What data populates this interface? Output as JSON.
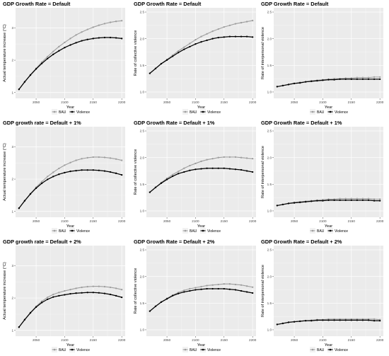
{
  "colors": {
    "panel_bg": "#ebebeb",
    "grid": "#ffffff",
    "bau": "#9e9e9e",
    "violence": "#000000"
  },
  "legend": {
    "bau_label": "BAU",
    "violence_label": "Violence"
  },
  "chart_data": [
    {
      "type": "line",
      "title": "GDP Growth Rate = Default",
      "xlabel": "Year",
      "ylabel": "Actual temperature increase (°C)",
      "xlim": [
        2014,
        2206
      ],
      "ylim": [
        0.82,
        3.62
      ],
      "xticks": [
        2050,
        2100,
        2150,
        2200
      ],
      "yticks": [
        1,
        2,
        3
      ],
      "x": [
        2020,
        2030,
        2040,
        2050,
        2060,
        2070,
        2080,
        2090,
        2100,
        2110,
        2120,
        2130,
        2140,
        2150,
        2160,
        2170,
        2180,
        2190,
        2200
      ],
      "series": [
        {
          "name": "BAU",
          "values": [
            1.1,
            1.33,
            1.55,
            1.75,
            1.94,
            2.11,
            2.27,
            2.42,
            2.55,
            2.67,
            2.78,
            2.87,
            2.95,
            3.02,
            3.08,
            3.13,
            3.17,
            3.2,
            3.22
          ]
        },
        {
          "name": "Violence",
          "values": [
            1.1,
            1.33,
            1.54,
            1.73,
            1.9,
            2.05,
            2.18,
            2.29,
            2.39,
            2.47,
            2.54,
            2.6,
            2.64,
            2.67,
            2.69,
            2.7,
            2.7,
            2.69,
            2.67
          ]
        }
      ]
    },
    {
      "type": "line",
      "title": "GDP Growth Rate = Default",
      "xlabel": "Year",
      "ylabel": "Rate of collective violence",
      "xlim": [
        2014,
        2206
      ],
      "ylim": [
        0.88,
        2.58
      ],
      "xticks": [
        2050,
        2100,
        2150,
        2200
      ],
      "yticks": [
        1.0,
        1.5,
        2.0,
        2.5
      ],
      "x": [
        2020,
        2030,
        2040,
        2050,
        2060,
        2070,
        2080,
        2090,
        2100,
        2110,
        2120,
        2130,
        2140,
        2150,
        2160,
        2170,
        2180,
        2190,
        2200
      ],
      "series": [
        {
          "name": "BAU",
          "values": [
            1.35,
            1.44,
            1.53,
            1.61,
            1.69,
            1.77,
            1.84,
            1.91,
            1.98,
            2.04,
            2.09,
            2.14,
            2.18,
            2.22,
            2.25,
            2.28,
            2.3,
            2.32,
            2.34
          ]
        },
        {
          "name": "Violence",
          "values": [
            1.35,
            1.44,
            1.53,
            1.6,
            1.67,
            1.74,
            1.8,
            1.85,
            1.9,
            1.94,
            1.97,
            2.0,
            2.02,
            2.03,
            2.04,
            2.04,
            2.04,
            2.04,
            2.03
          ]
        }
      ]
    },
    {
      "type": "line",
      "title": "GDP Growth Rate = Default",
      "xlabel": "Year",
      "ylabel": "Rate of interpersonal violence",
      "xlim": [
        2014,
        2206
      ],
      "ylim": [
        0.88,
        2.58
      ],
      "xticks": [
        2050,
        2100,
        2150,
        2200
      ],
      "yticks": [
        1.0,
        1.5,
        2.0,
        2.5
      ],
      "x": [
        2020,
        2030,
        2040,
        2050,
        2060,
        2070,
        2080,
        2090,
        2100,
        2110,
        2120,
        2130,
        2140,
        2150,
        2160,
        2170,
        2180,
        2190,
        2200
      ],
      "series": [
        {
          "name": "BAU",
          "values": [
            1.1,
            1.12,
            1.14,
            1.16,
            1.18,
            1.19,
            1.21,
            1.22,
            1.23,
            1.24,
            1.25,
            1.25,
            1.26,
            1.26,
            1.27,
            1.27,
            1.27,
            1.28,
            1.28
          ]
        },
        {
          "name": "Violence",
          "values": [
            1.1,
            1.12,
            1.14,
            1.16,
            1.17,
            1.19,
            1.2,
            1.21,
            1.22,
            1.23,
            1.23,
            1.24,
            1.24,
            1.24,
            1.24,
            1.24,
            1.24,
            1.24,
            1.24
          ]
        }
      ]
    },
    {
      "type": "line",
      "title": "GDP growth rate = Default + 1%",
      "xlabel": "Year",
      "ylabel": "Actual temperature increase (°C)",
      "xlim": [
        2014,
        2206
      ],
      "ylim": [
        0.82,
        3.62
      ],
      "xticks": [
        2050,
        2100,
        2150,
        2200
      ],
      "yticks": [
        1,
        2,
        3
      ],
      "x": [
        2020,
        2030,
        2040,
        2050,
        2060,
        2070,
        2080,
        2090,
        2100,
        2110,
        2120,
        2130,
        2140,
        2150,
        2160,
        2170,
        2180,
        2190,
        2200
      ],
      "series": [
        {
          "name": "BAU",
          "values": [
            1.1,
            1.33,
            1.55,
            1.75,
            1.92,
            2.08,
            2.21,
            2.33,
            2.43,
            2.51,
            2.58,
            2.63,
            2.66,
            2.68,
            2.68,
            2.67,
            2.65,
            2.62,
            2.58
          ]
        },
        {
          "name": "Violence",
          "values": [
            1.1,
            1.33,
            1.54,
            1.72,
            1.87,
            1.99,
            2.08,
            2.15,
            2.2,
            2.24,
            2.26,
            2.28,
            2.28,
            2.28,
            2.27,
            2.25,
            2.22,
            2.18,
            2.13
          ]
        }
      ]
    },
    {
      "type": "line",
      "title": "GDP Growth Rate = Default + 1%",
      "xlabel": "Year",
      "ylabel": "Rate of collective violence",
      "xlim": [
        2014,
        2206
      ],
      "ylim": [
        0.88,
        2.58
      ],
      "xticks": [
        2050,
        2100,
        2150,
        2200
      ],
      "yticks": [
        1.0,
        1.5,
        2.0,
        2.5
      ],
      "x": [
        2020,
        2030,
        2040,
        2050,
        2060,
        2070,
        2080,
        2090,
        2100,
        2110,
        2120,
        2130,
        2140,
        2150,
        2160,
        2170,
        2180,
        2190,
        2200
      ],
      "series": [
        {
          "name": "BAU",
          "values": [
            1.35,
            1.44,
            1.53,
            1.61,
            1.68,
            1.74,
            1.8,
            1.85,
            1.89,
            1.93,
            1.96,
            1.98,
            2.0,
            2.01,
            2.01,
            2.01,
            2.0,
            1.99,
            1.98
          ]
        },
        {
          "name": "Violence",
          "values": [
            1.35,
            1.44,
            1.52,
            1.59,
            1.65,
            1.7,
            1.73,
            1.76,
            1.78,
            1.79,
            1.8,
            1.8,
            1.8,
            1.8,
            1.79,
            1.78,
            1.77,
            1.75,
            1.73
          ]
        }
      ]
    },
    {
      "type": "line",
      "title": "GDP Growth Rate = Default + 1%",
      "xlabel": "Year",
      "ylabel": "Rate of interpersonal violence",
      "xlim": [
        2014,
        2206
      ],
      "ylim": [
        0.88,
        2.58
      ],
      "xticks": [
        2050,
        2100,
        2150,
        2200
      ],
      "yticks": [
        1.0,
        1.5,
        2.0,
        2.5
      ],
      "x": [
        2020,
        2030,
        2040,
        2050,
        2060,
        2070,
        2080,
        2090,
        2100,
        2110,
        2120,
        2130,
        2140,
        2150,
        2160,
        2170,
        2180,
        2190,
        2200
      ],
      "series": [
        {
          "name": "BAU",
          "values": [
            1.1,
            1.12,
            1.14,
            1.16,
            1.17,
            1.18,
            1.19,
            1.2,
            1.21,
            1.22,
            1.22,
            1.23,
            1.23,
            1.23,
            1.23,
            1.23,
            1.23,
            1.22,
            1.22
          ]
        },
        {
          "name": "Violence",
          "values": [
            1.1,
            1.12,
            1.14,
            1.15,
            1.16,
            1.17,
            1.18,
            1.19,
            1.19,
            1.2,
            1.2,
            1.2,
            1.2,
            1.2,
            1.2,
            1.2,
            1.2,
            1.19,
            1.19
          ]
        }
      ]
    },
    {
      "type": "line",
      "title": "GDP growth rate = Default + 2%",
      "xlabel": "Year",
      "ylabel": "Actual temperature increase (°C)",
      "xlim": [
        2014,
        2206
      ],
      "ylim": [
        0.82,
        3.62
      ],
      "xticks": [
        2050,
        2100,
        2150,
        2200
      ],
      "yticks": [
        1,
        2,
        3
      ],
      "x": [
        2020,
        2030,
        2040,
        2050,
        2060,
        2070,
        2080,
        2090,
        2100,
        2110,
        2120,
        2130,
        2140,
        2150,
        2160,
        2170,
        2180,
        2190,
        2200
      ],
      "series": [
        {
          "name": "BAU",
          "values": [
            1.1,
            1.33,
            1.55,
            1.74,
            1.9,
            2.02,
            2.11,
            2.17,
            2.22,
            2.26,
            2.3,
            2.33,
            2.35,
            2.36,
            2.36,
            2.35,
            2.33,
            2.3,
            2.26
          ]
        },
        {
          "name": "Violence",
          "values": [
            1.1,
            1.33,
            1.54,
            1.72,
            1.86,
            1.96,
            2.03,
            2.07,
            2.1,
            2.13,
            2.15,
            2.16,
            2.17,
            2.17,
            2.16,
            2.14,
            2.11,
            2.07,
            2.02
          ]
        }
      ]
    },
    {
      "type": "line",
      "title": "GDP Growth Rate = Default + 2%",
      "xlabel": "Year",
      "ylabel": "Rate of collective violence",
      "xlim": [
        2014,
        2206
      ],
      "ylim": [
        0.88,
        2.58
      ],
      "xticks": [
        2050,
        2100,
        2150,
        2200
      ],
      "yticks": [
        1.0,
        1.5,
        2.0,
        2.5
      ],
      "x": [
        2020,
        2030,
        2040,
        2050,
        2060,
        2070,
        2080,
        2090,
        2100,
        2110,
        2120,
        2130,
        2140,
        2150,
        2160,
        2170,
        2180,
        2190,
        2200
      ],
      "series": [
        {
          "name": "BAU",
          "values": [
            1.35,
            1.44,
            1.52,
            1.59,
            1.65,
            1.7,
            1.74,
            1.77,
            1.79,
            1.81,
            1.83,
            1.84,
            1.85,
            1.86,
            1.86,
            1.85,
            1.84,
            1.82,
            1.8
          ]
        },
        {
          "name": "Violence",
          "values": [
            1.35,
            1.44,
            1.52,
            1.58,
            1.64,
            1.68,
            1.71,
            1.73,
            1.75,
            1.76,
            1.77,
            1.77,
            1.77,
            1.77,
            1.76,
            1.75,
            1.73,
            1.71,
            1.69
          ]
        }
      ]
    },
    {
      "type": "line",
      "title": "GDP Growth Rate = Default + 2%",
      "xlabel": "Year",
      "ylabel": "Rate of interpersonal violence",
      "xlim": [
        2014,
        2206
      ],
      "ylim": [
        0.88,
        2.58
      ],
      "xticks": [
        2050,
        2100,
        2150,
        2200
      ],
      "yticks": [
        1.0,
        1.5,
        2.0,
        2.5
      ],
      "x": [
        2020,
        2030,
        2040,
        2050,
        2060,
        2070,
        2080,
        2090,
        2100,
        2110,
        2120,
        2130,
        2140,
        2150,
        2160,
        2170,
        2180,
        2190,
        2200
      ],
      "series": [
        {
          "name": "BAU",
          "values": [
            1.1,
            1.12,
            1.14,
            1.15,
            1.16,
            1.17,
            1.18,
            1.19,
            1.19,
            1.2,
            1.2,
            1.2,
            1.2,
            1.2,
            1.2,
            1.2,
            1.2,
            1.2,
            1.19
          ]
        },
        {
          "name": "Violence",
          "values": [
            1.1,
            1.12,
            1.14,
            1.15,
            1.16,
            1.17,
            1.17,
            1.18,
            1.18,
            1.18,
            1.18,
            1.18,
            1.18,
            1.18,
            1.18,
            1.18,
            1.18,
            1.17,
            1.17
          ]
        }
      ]
    }
  ]
}
